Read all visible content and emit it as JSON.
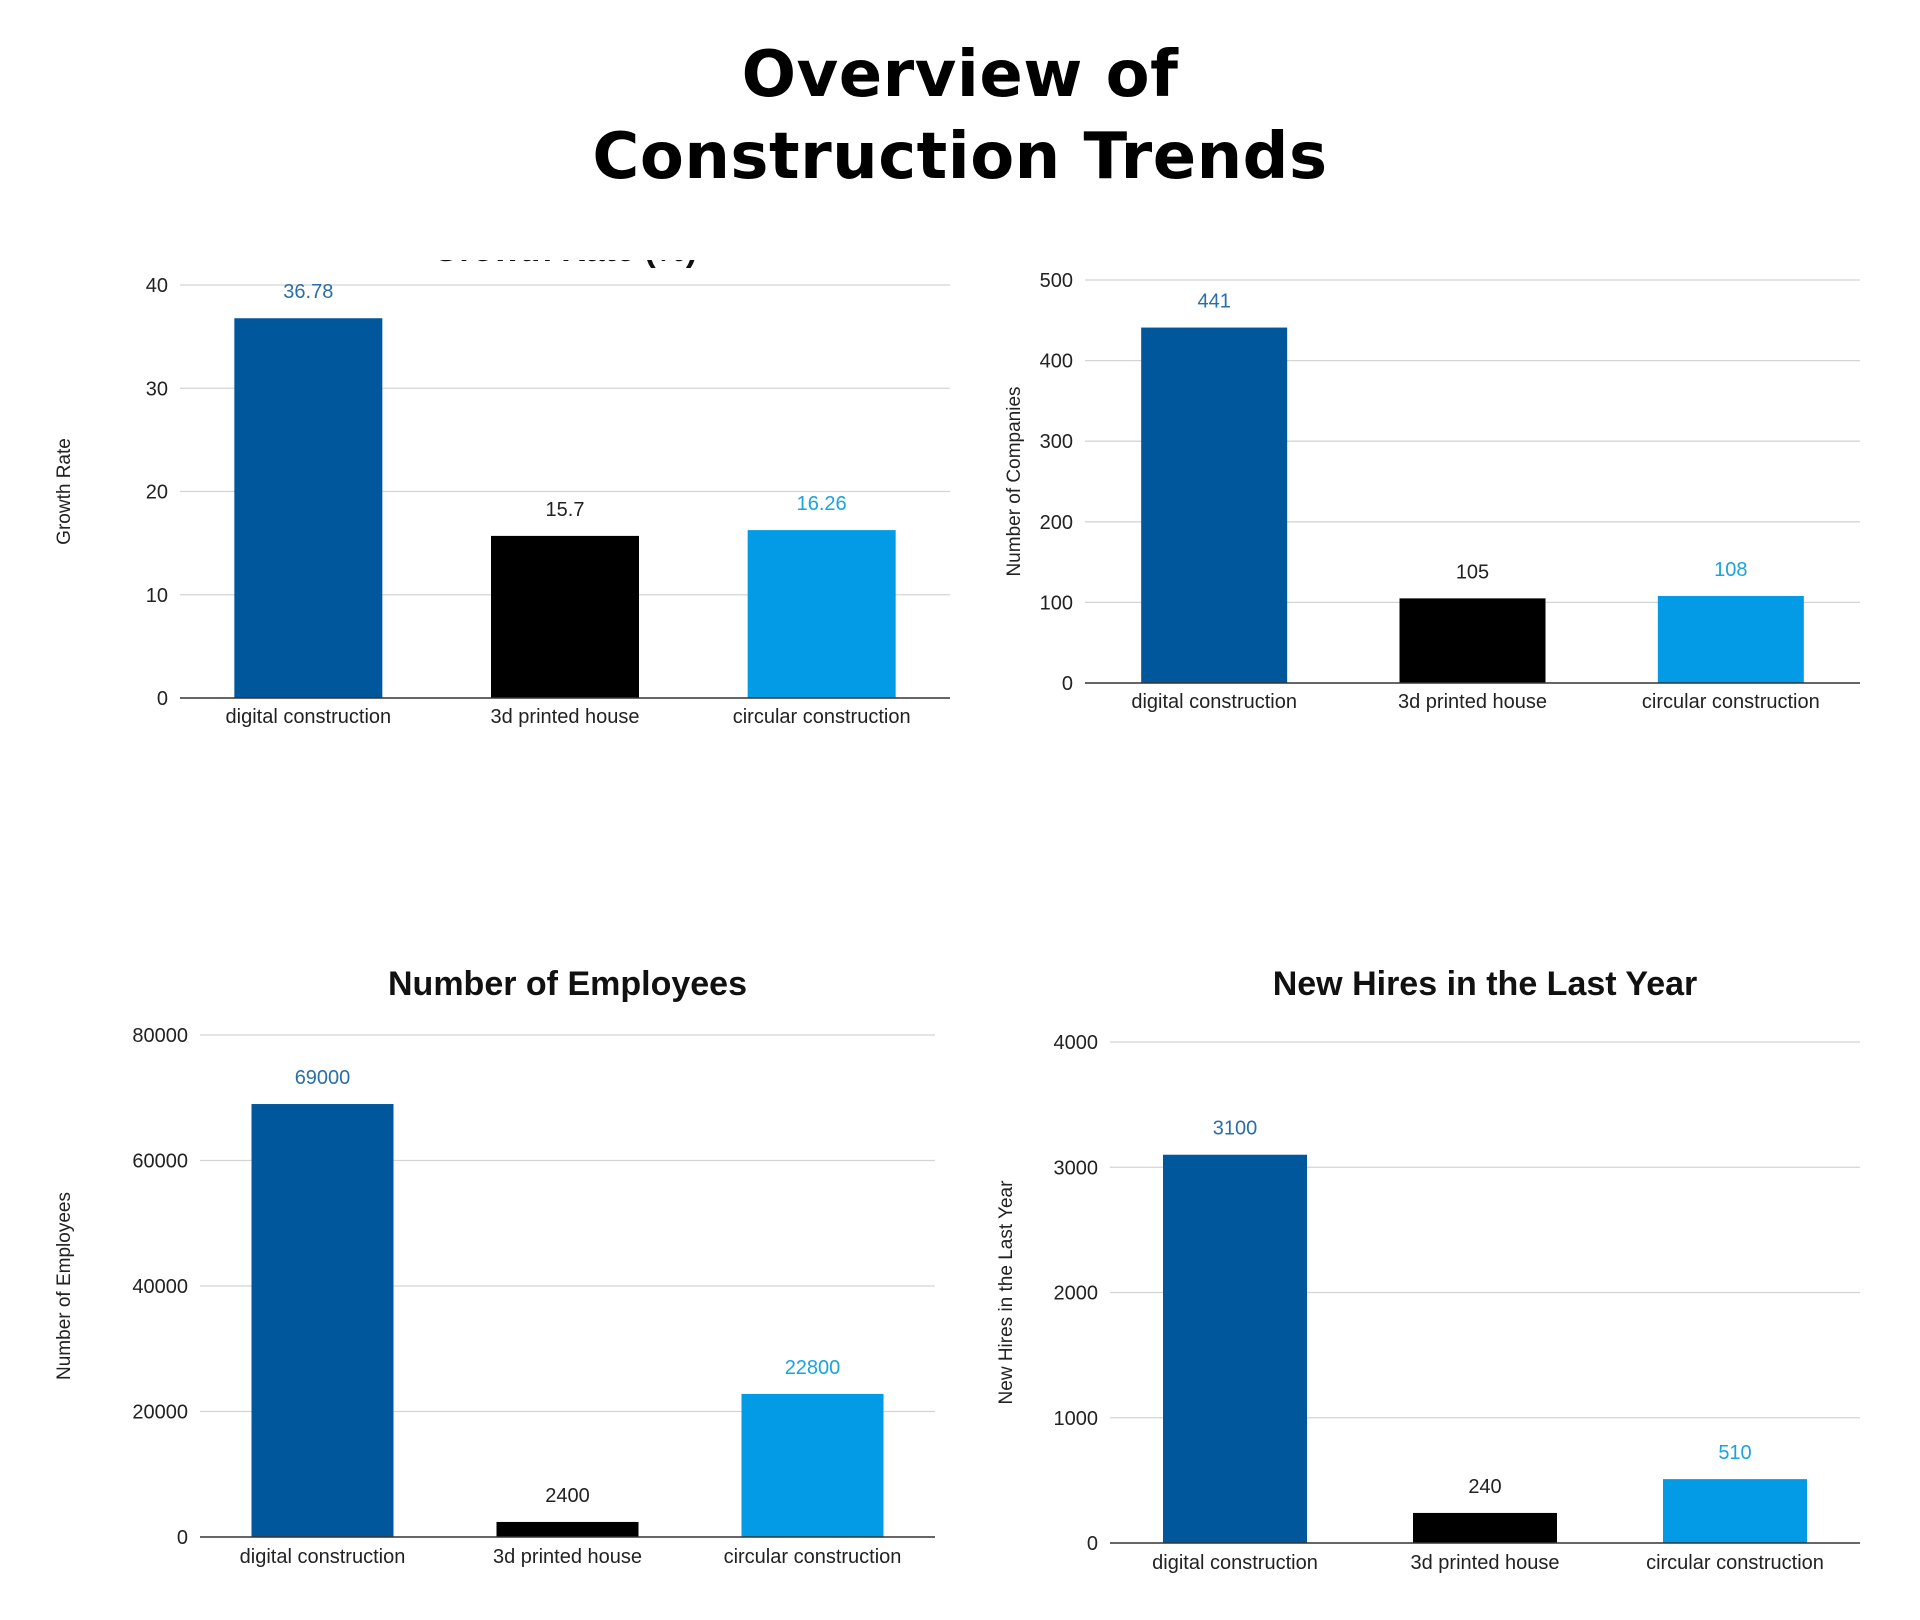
{
  "page": {
    "title_line1": "Overview of",
    "title_line2": "Construction Trends"
  },
  "colors": {
    "digital_construction": "#01579b",
    "3d_printed_house": "#000000",
    "circular_construction": "#039be5"
  },
  "label_colors": {
    "digital_construction": "#2a6ea8",
    "3d_printed_house": "#222222",
    "circular_construction": "#1aa3e0"
  },
  "chart_data": [
    {
      "id": "growth-rate",
      "type": "bar",
      "title": "Growth Rate (%)",
      "ylabel": "Growth Rate",
      "xlabel": "",
      "categories": [
        "digital construction",
        "3d printed house",
        "circular construction"
      ],
      "values": [
        36.78,
        15.7,
        16.26
      ],
      "data_labels": [
        "36.78",
        "15.7",
        "16.26"
      ],
      "ylim": [
        0,
        40
      ],
      "yticks": [
        0,
        10,
        20,
        30,
        40
      ],
      "grid": true,
      "legend": "none"
    },
    {
      "id": "number-of-companies",
      "type": "bar",
      "title": "Number of Companies",
      "ylabel": "Number of Companies",
      "xlabel": "",
      "categories": [
        "digital construction",
        "3d printed house",
        "circular construction"
      ],
      "values": [
        441,
        105,
        108
      ],
      "data_labels": [
        "441",
        "105",
        "108"
      ],
      "ylim": [
        0,
        500
      ],
      "yticks": [
        0,
        100,
        200,
        300,
        400,
        500
      ],
      "grid": true,
      "legend": "none"
    },
    {
      "id": "number-of-employees",
      "type": "bar",
      "title": "Number of Employees",
      "ylabel": "Number of Employees",
      "xlabel": "",
      "categories": [
        "digital construction",
        "3d printed house",
        "circular construction"
      ],
      "values": [
        69000,
        2400,
        22800
      ],
      "data_labels": [
        "69000",
        "2400",
        "22800"
      ],
      "ylim": [
        0,
        80000
      ],
      "yticks": [
        0,
        20000,
        40000,
        60000,
        80000
      ],
      "grid": true,
      "legend": "none"
    },
    {
      "id": "new-hires-last-year",
      "type": "bar",
      "title": "New Hires in the Last Year",
      "ylabel": "New Hires in the Last Year",
      "xlabel": "",
      "categories": [
        "digital construction",
        "3d printed house",
        "circular construction"
      ],
      "values": [
        3100,
        240,
        510
      ],
      "data_labels": [
        "3100",
        "240",
        "510"
      ],
      "ylim": [
        0,
        4000
      ],
      "yticks": [
        0,
        1000,
        2000,
        3000,
        4000
      ],
      "grid": true,
      "legend": "none"
    }
  ]
}
